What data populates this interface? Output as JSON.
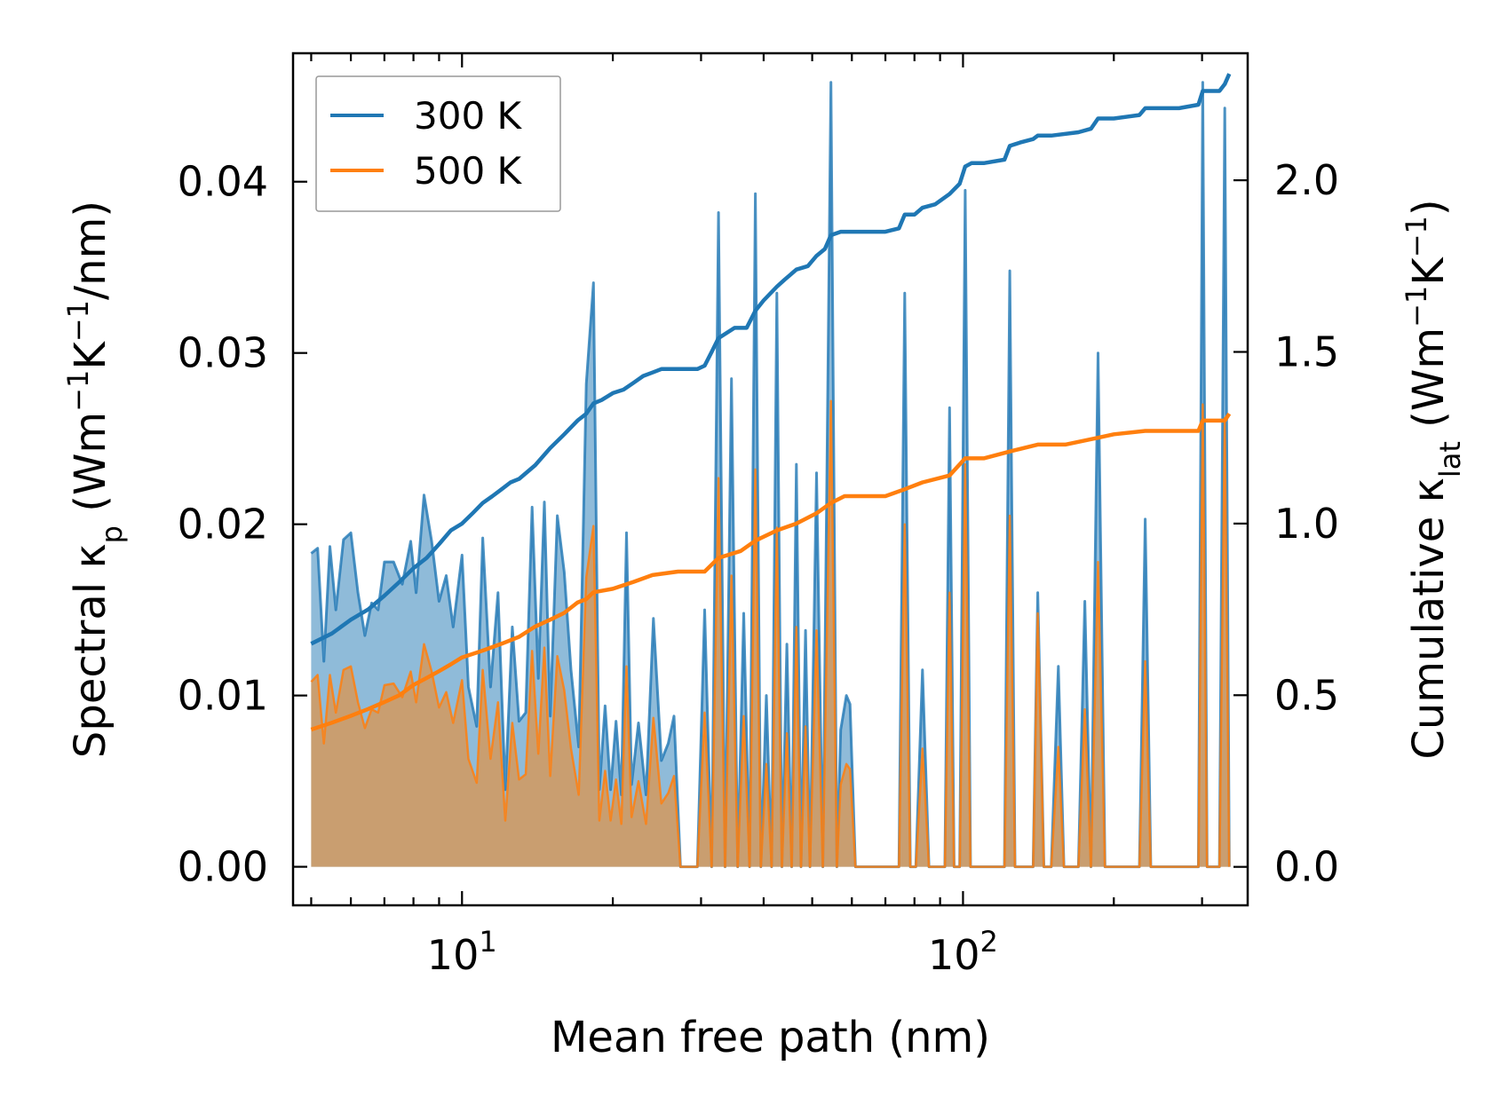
{
  "chart_data": {
    "type": "line",
    "title": "",
    "xlabel": "Mean free path (nm)",
    "ylabel_left": "Spectral κp (Wm⁻¹K⁻¹/nm)",
    "ylabel_right": "Cumulative κlat (Wm⁻¹K⁻¹)",
    "xscale": "log",
    "xlim": [
      4.6,
      370
    ],
    "ylim_left": [
      -0.00225,
      0.0475
    ],
    "ylim_right": [
      -0.112,
      2.37
    ],
    "x_tick_labels": [
      {
        "base": "10",
        "exp": "1",
        "value": 10
      },
      {
        "base": "10",
        "exp": "2",
        "value": 100
      }
    ],
    "y_tick_labels_left": [
      {
        "label": "0.00",
        "value": 0.0
      },
      {
        "label": "0.01",
        "value": 0.01
      },
      {
        "label": "0.02",
        "value": 0.02
      },
      {
        "label": "0.03",
        "value": 0.03
      },
      {
        "label": "0.04",
        "value": 0.04
      }
    ],
    "y_tick_labels_right": [
      {
        "label": "0.0",
        "value": 0.0
      },
      {
        "label": "0.5",
        "value": 0.5
      },
      {
        "label": "1.0",
        "value": 1.0
      },
      {
        "label": "1.5",
        "value": 1.5
      },
      {
        "label": "2.0",
        "value": 2.0
      }
    ],
    "legend": {
      "position": "top-left",
      "entries": [
        "300 K",
        "500 K"
      ]
    },
    "colors": {
      "300K": "#1f77b4",
      "500K": "#ff7f0e",
      "fill300": "#1f77b4",
      "fill500": "#f08a2a"
    },
    "spectral_300K": [
      [
        5.0,
        0.0183
      ],
      [
        5.15,
        0.0186
      ],
      [
        5.3,
        0.012
      ],
      [
        5.45,
        0.0187
      ],
      [
        5.6,
        0.015
      ],
      [
        5.8,
        0.0191
      ],
      [
        6.0,
        0.0195
      ],
      [
        6.2,
        0.016
      ],
      [
        6.4,
        0.0135
      ],
      [
        6.6,
        0.0154
      ],
      [
        6.8,
        0.015
      ],
      [
        7.0,
        0.0178
      ],
      [
        7.3,
        0.0178
      ],
      [
        7.6,
        0.0165
      ],
      [
        7.9,
        0.019
      ],
      [
        8.1,
        0.016
      ],
      [
        8.4,
        0.0217
      ],
      [
        8.7,
        0.019
      ],
      [
        9.0,
        0.0155
      ],
      [
        9.3,
        0.017
      ],
      [
        9.6,
        0.014
      ],
      [
        10.0,
        0.0182
      ],
      [
        10.3,
        0.0105
      ],
      [
        10.7,
        0.0082
      ],
      [
        11.0,
        0.0192
      ],
      [
        11.4,
        0.0105
      ],
      [
        11.8,
        0.016
      ],
      [
        12.2,
        0.0045
      ],
      [
        12.6,
        0.014
      ],
      [
        13.0,
        0.0085
      ],
      [
        13.4,
        0.009
      ],
      [
        13.8,
        0.021
      ],
      [
        14.2,
        0.011
      ],
      [
        14.6,
        0.0213
      ],
      [
        15.0,
        0.0088
      ],
      [
        15.5,
        0.0205
      ],
      [
        16.0,
        0.0172
      ],
      [
        16.5,
        0.0115
      ],
      [
        17.1,
        0.007
      ],
      [
        17.7,
        0.0282
      ],
      [
        18.3,
        0.0341
      ],
      [
        18.8,
        0.0045
      ],
      [
        19.3,
        0.0094
      ],
      [
        19.8,
        0.0045
      ],
      [
        20.3,
        0.0085
      ],
      [
        20.8,
        0.0042
      ],
      [
        21.3,
        0.0195
      ],
      [
        21.8,
        0.0048
      ],
      [
        22.5,
        0.0084
      ],
      [
        23.3,
        0.0042
      ],
      [
        24.1,
        0.0145
      ],
      [
        25.0,
        0.0062
      ],
      [
        25.8,
        0.0072
      ],
      [
        26.5,
        0.0088
      ],
      [
        27.3,
        0.0
      ],
      [
        29.5,
        0.0
      ],
      [
        30.5,
        0.015
      ],
      [
        31.5,
        0.0
      ],
      [
        32.5,
        0.0382
      ],
      [
        33.5,
        0.0
      ],
      [
        34.5,
        0.0285
      ],
      [
        35.5,
        0.0
      ],
      [
        36.5,
        0.0148
      ],
      [
        37.5,
        0.0
      ],
      [
        38.5,
        0.0393
      ],
      [
        39.5,
        0.0
      ],
      [
        40.5,
        0.01
      ],
      [
        41.5,
        0.0
      ],
      [
        42.5,
        0.0335
      ],
      [
        43.5,
        0.0
      ],
      [
        44.5,
        0.013
      ],
      [
        45.5,
        0.0
      ],
      [
        46.5,
        0.0235
      ],
      [
        47.5,
        0.0
      ],
      [
        48.5,
        0.0138
      ],
      [
        49.5,
        0.0
      ],
      [
        51.0,
        0.023
      ],
      [
        52.5,
        0.0
      ],
      [
        54.5,
        0.0458
      ],
      [
        56.0,
        0.0
      ],
      [
        57.0,
        0.008
      ],
      [
        58.5,
        0.01
      ],
      [
        59.5,
        0.0095
      ],
      [
        61.0,
        0.0
      ],
      [
        65.0,
        0.0
      ],
      [
        72.0,
        0.0
      ],
      [
        74.5,
        0.0
      ],
      [
        76.5,
        0.0335
      ],
      [
        78.5,
        0.0
      ],
      [
        80.5,
        0.0
      ],
      [
        83.0,
        0.0115
      ],
      [
        85.5,
        0.0
      ],
      [
        88.0,
        0.0
      ],
      [
        92.0,
        0.0
      ],
      [
        94.0,
        0.0268
      ],
      [
        96.0,
        0.0
      ],
      [
        98.5,
        0.0
      ],
      [
        101.0,
        0.0395
      ],
      [
        103.5,
        0.0
      ],
      [
        106.0,
        0.0
      ],
      [
        110.0,
        0.0
      ],
      [
        118.0,
        0.0
      ],
      [
        121.0,
        0.0
      ],
      [
        124.0,
        0.0348
      ],
      [
        127.0,
        0.0
      ],
      [
        130.0,
        0.0
      ],
      [
        134.0,
        0.0
      ],
      [
        138.0,
        0.0
      ],
      [
        141.0,
        0.016
      ],
      [
        145.0,
        0.0
      ],
      [
        150.0,
        0.0
      ],
      [
        155.0,
        0.0117
      ],
      [
        159.0,
        0.0
      ],
      [
        170.0,
        0.0
      ],
      [
        175.0,
        0.0155
      ],
      [
        180.0,
        0.0
      ],
      [
        186.0,
        0.03
      ],
      [
        192.0,
        0.0
      ],
      [
        210.0,
        0.0
      ],
      [
        225.0,
        0.0
      ],
      [
        231.0,
        0.0203
      ],
      [
        237.0,
        0.0
      ],
      [
        270.0,
        0.0
      ],
      [
        295.0,
        0.0
      ],
      [
        301.0,
        0.0458
      ],
      [
        307.0,
        0.0
      ],
      [
        325.0,
        0.0
      ],
      [
        333.0,
        0.0443
      ],
      [
        340.0,
        0.0
      ]
    ],
    "spectral_500K": [
      [
        5.0,
        0.0108
      ],
      [
        5.15,
        0.0112
      ],
      [
        5.3,
        0.0072
      ],
      [
        5.45,
        0.0112
      ],
      [
        5.6,
        0.009
      ],
      [
        5.8,
        0.0115
      ],
      [
        6.0,
        0.0117
      ],
      [
        6.2,
        0.0096
      ],
      [
        6.4,
        0.0081
      ],
      [
        6.6,
        0.0092
      ],
      [
        6.8,
        0.009
      ],
      [
        7.0,
        0.0106
      ],
      [
        7.3,
        0.0107
      ],
      [
        7.6,
        0.0099
      ],
      [
        7.9,
        0.0114
      ],
      [
        8.1,
        0.0096
      ],
      [
        8.4,
        0.013
      ],
      [
        8.7,
        0.0114
      ],
      [
        9.0,
        0.0093
      ],
      [
        9.3,
        0.0102
      ],
      [
        9.6,
        0.0084
      ],
      [
        10.0,
        0.0109
      ],
      [
        10.3,
        0.0063
      ],
      [
        10.7,
        0.0049
      ],
      [
        11.0,
        0.0115
      ],
      [
        11.4,
        0.0063
      ],
      [
        11.8,
        0.0096
      ],
      [
        12.2,
        0.0027
      ],
      [
        12.6,
        0.0084
      ],
      [
        13.0,
        0.0051
      ],
      [
        13.4,
        0.0054
      ],
      [
        13.8,
        0.0126
      ],
      [
        14.2,
        0.0066
      ],
      [
        14.6,
        0.0128
      ],
      [
        15.0,
        0.0053
      ],
      [
        15.5,
        0.0123
      ],
      [
        16.0,
        0.0103
      ],
      [
        16.5,
        0.0069
      ],
      [
        17.1,
        0.0042
      ],
      [
        17.7,
        0.0169
      ],
      [
        18.3,
        0.0199
      ],
      [
        18.8,
        0.0027
      ],
      [
        19.3,
        0.0056
      ],
      [
        19.8,
        0.0027
      ],
      [
        20.3,
        0.0051
      ],
      [
        20.8,
        0.0025
      ],
      [
        21.3,
        0.0117
      ],
      [
        21.8,
        0.0029
      ],
      [
        22.5,
        0.005
      ],
      [
        23.3,
        0.0025
      ],
      [
        24.1,
        0.0087
      ],
      [
        25.0,
        0.0037
      ],
      [
        25.8,
        0.0043
      ],
      [
        26.5,
        0.0053
      ],
      [
        27.3,
        0.0
      ],
      [
        29.5,
        0.0
      ],
      [
        30.5,
        0.009
      ],
      [
        31.5,
        0.0
      ],
      [
        32.5,
        0.0227
      ],
      [
        33.5,
        0.0
      ],
      [
        34.5,
        0.017
      ],
      [
        35.5,
        0.0
      ],
      [
        36.5,
        0.0088
      ],
      [
        37.5,
        0.0
      ],
      [
        38.5,
        0.0232
      ],
      [
        39.5,
        0.0
      ],
      [
        40.5,
        0.006
      ],
      [
        41.5,
        0.0
      ],
      [
        42.5,
        0.0198
      ],
      [
        43.5,
        0.0
      ],
      [
        44.5,
        0.0078
      ],
      [
        45.5,
        0.0
      ],
      [
        46.5,
        0.014
      ],
      [
        47.5,
        0.0
      ],
      [
        48.5,
        0.0082
      ],
      [
        49.5,
        0.0
      ],
      [
        51.0,
        0.0138
      ],
      [
        52.5,
        0.0
      ],
      [
        54.5,
        0.0272
      ],
      [
        56.0,
        0.0
      ],
      [
        57.0,
        0.0048
      ],
      [
        58.5,
        0.006
      ],
      [
        59.5,
        0.0057
      ],
      [
        61.0,
        0.0
      ],
      [
        65.0,
        0.0
      ],
      [
        72.0,
        0.0
      ],
      [
        74.5,
        0.0
      ],
      [
        76.5,
        0.02
      ],
      [
        78.5,
        0.0
      ],
      [
        80.5,
        0.0
      ],
      [
        83.0,
        0.0069
      ],
      [
        85.5,
        0.0
      ],
      [
        88.0,
        0.0
      ],
      [
        92.0,
        0.0
      ],
      [
        94.0,
        0.016
      ],
      [
        96.0,
        0.0
      ],
      [
        98.5,
        0.0
      ],
      [
        101.0,
        0.0235
      ],
      [
        103.5,
        0.0
      ],
      [
        106.0,
        0.0
      ],
      [
        110.0,
        0.0
      ],
      [
        118.0,
        0.0
      ],
      [
        121.0,
        0.0
      ],
      [
        124.0,
        0.0205
      ],
      [
        127.0,
        0.0
      ],
      [
        130.0,
        0.0
      ],
      [
        134.0,
        0.0
      ],
      [
        138.0,
        0.0
      ],
      [
        141.0,
        0.0148
      ],
      [
        145.0,
        0.0
      ],
      [
        150.0,
        0.0
      ],
      [
        155.0,
        0.007
      ],
      [
        159.0,
        0.0
      ],
      [
        170.0,
        0.0
      ],
      [
        175.0,
        0.0092
      ],
      [
        180.0,
        0.0
      ],
      [
        186.0,
        0.0178
      ],
      [
        192.0,
        0.0
      ],
      [
        210.0,
        0.0
      ],
      [
        225.0,
        0.0
      ],
      [
        231.0,
        0.012
      ],
      [
        237.0,
        0.0
      ],
      [
        270.0,
        0.0
      ],
      [
        295.0,
        0.0
      ],
      [
        301.0,
        0.027
      ],
      [
        307.0,
        0.0
      ],
      [
        325.0,
        0.0
      ],
      [
        333.0,
        0.0262
      ],
      [
        340.0,
        0.0
      ]
    ],
    "cumulative_300K": [
      [
        5.0,
        0.65
      ],
      [
        5.5,
        0.68
      ],
      [
        6.0,
        0.72
      ],
      [
        6.5,
        0.75
      ],
      [
        7.0,
        0.79
      ],
      [
        7.5,
        0.83
      ],
      [
        8.0,
        0.87
      ],
      [
        8.5,
        0.9
      ],
      [
        9.0,
        0.94
      ],
      [
        9.5,
        0.98
      ],
      [
        10.0,
        1.0
      ],
      [
        10.5,
        1.03
      ],
      [
        11.0,
        1.06
      ],
      [
        11.5,
        1.08
      ],
      [
        12.0,
        1.1
      ],
      [
        12.5,
        1.12
      ],
      [
        13.0,
        1.13
      ],
      [
        14.0,
        1.17
      ],
      [
        15.0,
        1.22
      ],
      [
        16.0,
        1.26
      ],
      [
        17.0,
        1.3
      ],
      [
        17.7,
        1.32
      ],
      [
        18.3,
        1.35
      ],
      [
        19.0,
        1.36
      ],
      [
        20.0,
        1.38
      ],
      [
        21.0,
        1.39
      ],
      [
        22.0,
        1.41
      ],
      [
        23.0,
        1.43
      ],
      [
        24.0,
        1.44
      ],
      [
        25.0,
        1.45
      ],
      [
        27.0,
        1.45
      ],
      [
        29.5,
        1.45
      ],
      [
        30.5,
        1.46
      ],
      [
        31.5,
        1.5
      ],
      [
        32.5,
        1.54
      ],
      [
        35.0,
        1.57
      ],
      [
        37.0,
        1.57
      ],
      [
        38.5,
        1.62
      ],
      [
        40.0,
        1.65
      ],
      [
        42.5,
        1.69
      ],
      [
        44.0,
        1.71
      ],
      [
        46.5,
        1.74
      ],
      [
        49.0,
        1.75
      ],
      [
        51.0,
        1.78
      ],
      [
        53.0,
        1.8
      ],
      [
        54.5,
        1.84
      ],
      [
        57.0,
        1.85
      ],
      [
        61.0,
        1.85
      ],
      [
        70.0,
        1.85
      ],
      [
        74.5,
        1.86
      ],
      [
        76.5,
        1.9
      ],
      [
        80.0,
        1.9
      ],
      [
        83.0,
        1.92
      ],
      [
        88.0,
        1.93
      ],
      [
        94.0,
        1.96
      ],
      [
        98.5,
        1.99
      ],
      [
        101.0,
        2.04
      ],
      [
        104.0,
        2.05
      ],
      [
        110.0,
        2.05
      ],
      [
        121.0,
        2.06
      ],
      [
        124.0,
        2.1
      ],
      [
        130.0,
        2.11
      ],
      [
        138.0,
        2.12
      ],
      [
        141.0,
        2.13
      ],
      [
        150.0,
        2.13
      ],
      [
        170.0,
        2.14
      ],
      [
        180.0,
        2.15
      ],
      [
        186.0,
        2.18
      ],
      [
        200.0,
        2.18
      ],
      [
        225.0,
        2.19
      ],
      [
        231.0,
        2.21
      ],
      [
        270.0,
        2.21
      ],
      [
        295.0,
        2.22
      ],
      [
        301.0,
        2.26
      ],
      [
        325.0,
        2.26
      ],
      [
        333.0,
        2.28
      ],
      [
        340.0,
        2.31
      ]
    ],
    "cumulative_500K": [
      [
        5.0,
        0.4
      ],
      [
        5.5,
        0.42
      ],
      [
        6.0,
        0.44
      ],
      [
        6.5,
        0.46
      ],
      [
        7.0,
        0.48
      ],
      [
        7.5,
        0.5
      ],
      [
        8.0,
        0.53
      ],
      [
        8.5,
        0.55
      ],
      [
        9.0,
        0.57
      ],
      [
        9.5,
        0.59
      ],
      [
        10.0,
        0.61
      ],
      [
        11.0,
        0.63
      ],
      [
        12.0,
        0.65
      ],
      [
        13.0,
        0.67
      ],
      [
        14.0,
        0.7
      ],
      [
        15.0,
        0.72
      ],
      [
        16.0,
        0.74
      ],
      [
        17.0,
        0.77
      ],
      [
        17.7,
        0.78
      ],
      [
        18.3,
        0.8
      ],
      [
        20.0,
        0.81
      ],
      [
        22.0,
        0.83
      ],
      [
        24.0,
        0.85
      ],
      [
        27.0,
        0.86
      ],
      [
        30.5,
        0.86
      ],
      [
        32.5,
        0.9
      ],
      [
        36.0,
        0.92
      ],
      [
        38.5,
        0.95
      ],
      [
        42.5,
        0.98
      ],
      [
        46.5,
        1.0
      ],
      [
        51.0,
        1.03
      ],
      [
        54.5,
        1.06
      ],
      [
        58.0,
        1.08
      ],
      [
        70.0,
        1.08
      ],
      [
        76.5,
        1.1
      ],
      [
        83.0,
        1.12
      ],
      [
        94.0,
        1.14
      ],
      [
        101.0,
        1.19
      ],
      [
        110.0,
        1.19
      ],
      [
        124.0,
        1.21
      ],
      [
        141.0,
        1.23
      ],
      [
        160.0,
        1.23
      ],
      [
        186.0,
        1.25
      ],
      [
        200.0,
        1.26
      ],
      [
        231.0,
        1.27
      ],
      [
        295.0,
        1.27
      ],
      [
        301.0,
        1.3
      ],
      [
        333.0,
        1.3
      ],
      [
        340.0,
        1.32
      ]
    ]
  }
}
